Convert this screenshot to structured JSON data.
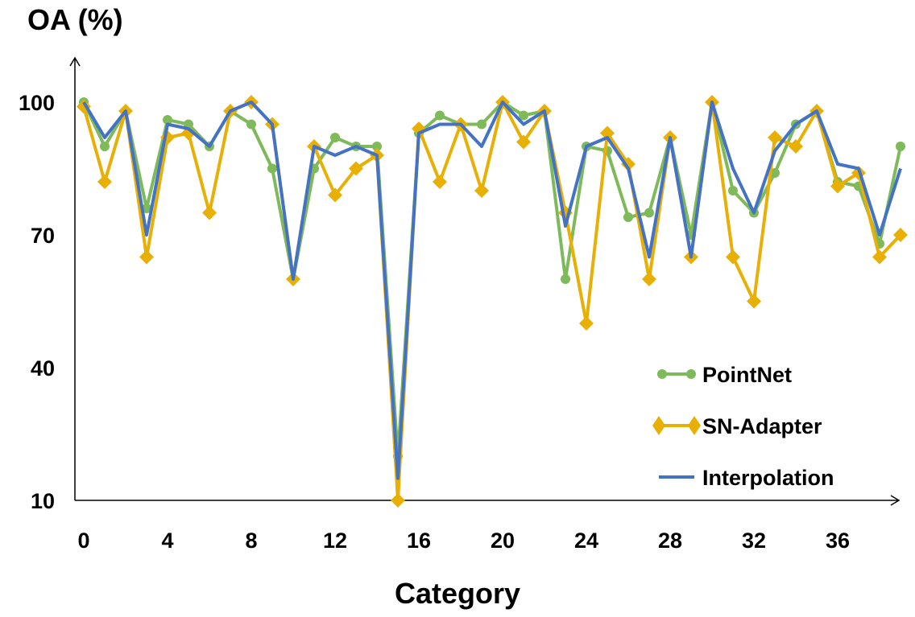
{
  "chart_data": {
    "type": "line",
    "title": "",
    "xlabel": "Category",
    "ylabel": "OA (%)",
    "ylim": [
      10,
      110
    ],
    "xlim": [
      0,
      39
    ],
    "yticks": [
      "100",
      "70",
      "40",
      "10"
    ],
    "xticks": [
      "0",
      "4",
      "8",
      "12",
      "16",
      "20",
      "24",
      "28",
      "32",
      "36"
    ],
    "legend_position": "bottom-right",
    "grid": false,
    "x": [
      0,
      1,
      2,
      3,
      4,
      5,
      6,
      7,
      8,
      9,
      10,
      11,
      12,
      13,
      14,
      15,
      16,
      17,
      18,
      19,
      20,
      21,
      22,
      23,
      24,
      25,
      26,
      27,
      28,
      29,
      30,
      31,
      32,
      33,
      34,
      35,
      36,
      37,
      38,
      39
    ],
    "series": [
      {
        "name": "PointNet",
        "color": "#7FBA5A",
        "marker": "circle",
        "values": [
          100,
          90,
          98,
          76,
          96,
          95,
          90,
          98,
          95,
          85,
          60,
          85,
          92,
          90,
          90,
          20,
          93,
          97,
          95,
          95,
          100,
          97,
          98,
          60,
          90,
          89,
          74,
          75,
          92,
          70,
          100,
          80,
          75,
          84,
          95,
          98,
          82,
          81,
          68,
          90
        ]
      },
      {
        "name": "SN-Adapter",
        "color": "#E8AF05",
        "marker": "diamond",
        "values": [
          99,
          82,
          98,
          65,
          92,
          93,
          75,
          98,
          100,
          95,
          60,
          90,
          79,
          85,
          88,
          10,
          94,
          82,
          95,
          80,
          100,
          91,
          98,
          75,
          50,
          93,
          86,
          60,
          92,
          65,
          100,
          65,
          55,
          92,
          90,
          98,
          81,
          84,
          65,
          70
        ]
      },
      {
        "name": "Interpolation",
        "color": "#4472C4",
        "marker": "none",
        "values": [
          100,
          92,
          98,
          70,
          95,
          94,
          90,
          98,
          100,
          95,
          60,
          90,
          88,
          90,
          88,
          15,
          93,
          95,
          95,
          90,
          100,
          95,
          98,
          72,
          90,
          92,
          85,
          65,
          92,
          65,
          100,
          85,
          75,
          89,
          95,
          98,
          86,
          85,
          70,
          85
        ]
      }
    ]
  }
}
